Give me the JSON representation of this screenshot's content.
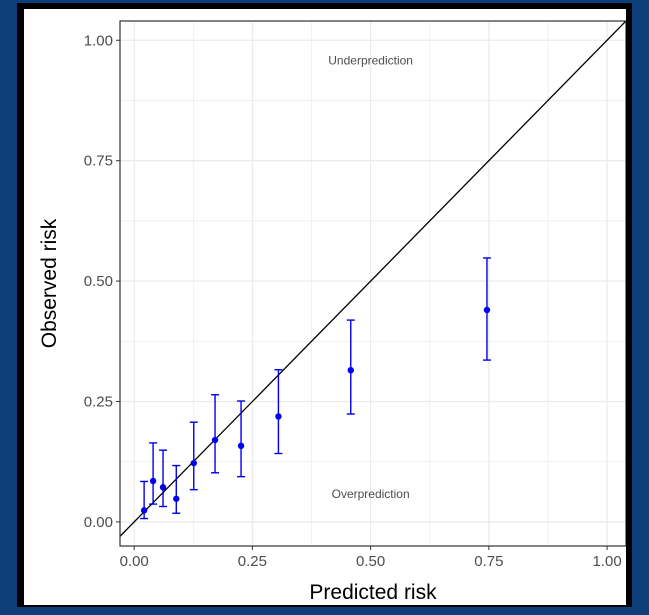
{
  "chart_data": {
    "type": "scatter",
    "title": "",
    "xlabel": "Predicted risk",
    "ylabel": "Observed risk",
    "xlim": [
      -0.03,
      1.04
    ],
    "ylim": [
      -0.05,
      1.04
    ],
    "x_ticks": [
      "0.00",
      "0.25",
      "0.50",
      "0.75",
      "1.00"
    ],
    "y_ticks": [
      "0.00",
      "0.25",
      "0.50",
      "0.75",
      "1.00"
    ],
    "grid": true,
    "reference_line": "y = x",
    "annotations": {
      "top": "Underprediction",
      "bottom": "Overprediction"
    },
    "points": [
      {
        "x": 0.021,
        "y": 0.024,
        "lo": 0.007,
        "hi": 0.084
      },
      {
        "x": 0.04,
        "y": 0.085,
        "lo": 0.037,
        "hi": 0.164
      },
      {
        "x": 0.061,
        "y": 0.072,
        "lo": 0.032,
        "hi": 0.149
      },
      {
        "x": 0.089,
        "y": 0.048,
        "lo": 0.018,
        "hi": 0.117
      },
      {
        "x": 0.126,
        "y": 0.122,
        "lo": 0.067,
        "hi": 0.207
      },
      {
        "x": 0.171,
        "y": 0.17,
        "lo": 0.102,
        "hi": 0.264
      },
      {
        "x": 0.226,
        "y": 0.158,
        "lo": 0.094,
        "hi": 0.251
      },
      {
        "x": 0.305,
        "y": 0.219,
        "lo": 0.142,
        "hi": 0.316
      },
      {
        "x": 0.458,
        "y": 0.315,
        "lo": 0.224,
        "hi": 0.419
      },
      {
        "x": 0.746,
        "y": 0.44,
        "lo": 0.336,
        "hi": 0.548
      }
    ],
    "colors": {
      "points": "#0000ee",
      "reference": "#000000",
      "grid": "#ebebeb",
      "panel_border": "#333333"
    }
  }
}
